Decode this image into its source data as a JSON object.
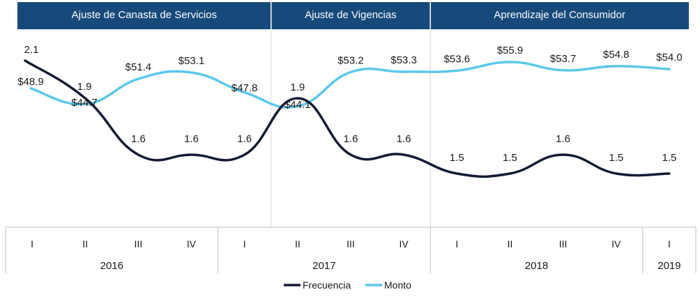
{
  "chart_data": {
    "type": "line",
    "phases": [
      {
        "label": "Ajuste de Canasta de Servicios",
        "start": 0,
        "end": 5
      },
      {
        "label": "Ajuste de Vigencias",
        "start": 5,
        "end": 8
      },
      {
        "label": "Aprendizaje del Consumidor",
        "start": 8,
        "end": 13
      }
    ],
    "categories": [
      "I",
      "II",
      "III",
      "IV",
      "I",
      "II",
      "III",
      "IV",
      "I",
      "II",
      "III",
      "IV",
      "I"
    ],
    "years": [
      {
        "label": "2016",
        "start": 0,
        "end": 4
      },
      {
        "label": "2017",
        "start": 4,
        "end": 8
      },
      {
        "label": "2018",
        "start": 8,
        "end": 12
      },
      {
        "label": "2019",
        "start": 12,
        "end": 13
      }
    ],
    "series": [
      {
        "name": "Frecuencia",
        "color": "#141a33",
        "values": [
          2.1,
          1.9,
          1.6,
          1.6,
          1.6,
          1.9,
          1.6,
          1.6,
          1.5,
          1.5,
          1.6,
          1.5,
          1.5
        ],
        "labels": [
          "2.1",
          "1.9",
          "1.6",
          "1.6",
          "1.6",
          "1.9",
          "1.6",
          "1.6",
          "1.5",
          "1.5",
          "1.6",
          "1.5",
          "1.5"
        ]
      },
      {
        "name": "Monto",
        "color": "#5bc8ec",
        "values": [
          48.9,
          44.7,
          51.4,
          53.1,
          47.8,
          44.1,
          53.2,
          53.3,
          53.6,
          55.9,
          53.7,
          54.8,
          54.0
        ],
        "labels": [
          "$48.9",
          "$44.7",
          "$51.4",
          "$53.1",
          "$47.8",
          "$44.1",
          "$53.2",
          "$53.3",
          "$53.6",
          "$55.9",
          "$53.7",
          "$54.8",
          "$54.0"
        ]
      }
    ],
    "header_color": "#174a7a",
    "grid": false,
    "legend_position": "bottom-center"
  }
}
